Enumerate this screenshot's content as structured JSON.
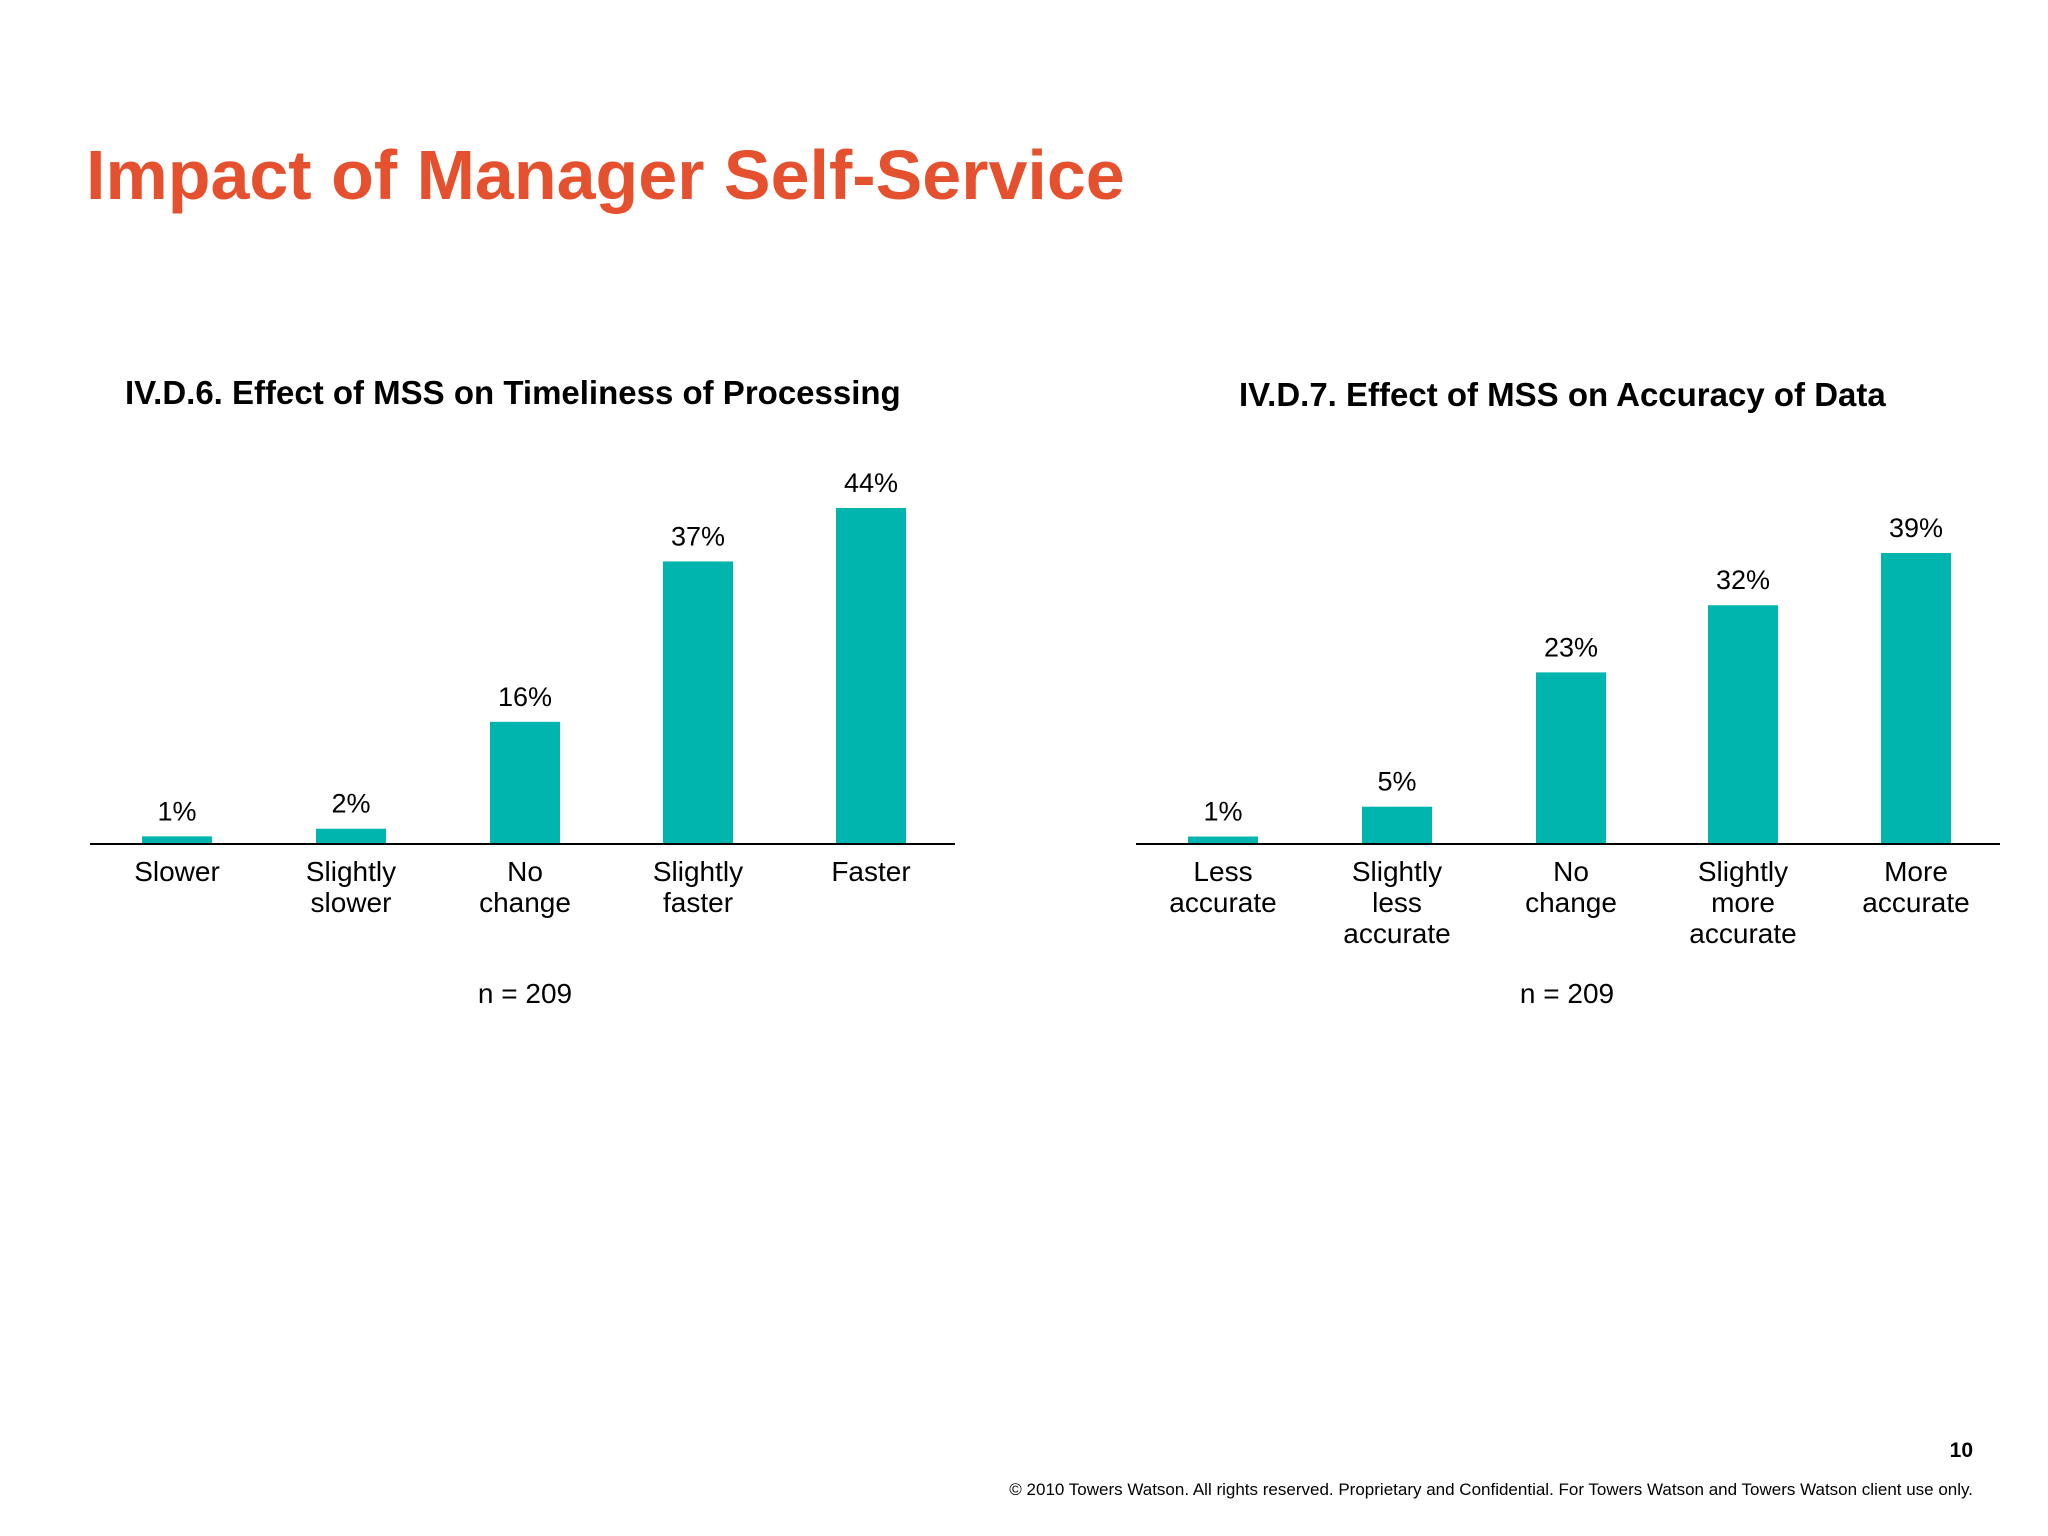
{
  "slide": {
    "title": "Impact of Manager Self-Service",
    "page_number": "10",
    "footer": "© 2010 Towers Watson. All rights reserved. Proprietary and Confidential. For Towers Watson and Towers Watson client use only."
  },
  "colors": {
    "title": "#E5502E",
    "bar": "#00B5AD",
    "axis": "#000000"
  },
  "chart_data": [
    {
      "type": "bar",
      "title": "IV.D.6. Effect of MSS on Timeliness of Processing",
      "categories": [
        [
          "Slower"
        ],
        [
          "Slightly",
          "slower"
        ],
        [
          "No",
          "change"
        ],
        [
          "Slightly",
          "faster"
        ],
        [
          "Faster"
        ]
      ],
      "values": [
        1,
        2,
        16,
        37,
        44
      ],
      "value_labels": [
        "1%",
        "2%",
        "16%",
        "37%",
        "44%"
      ],
      "unit": "%",
      "note": "n = 209",
      "xlabel": "",
      "ylabel": "",
      "ylim": [
        0,
        44
      ],
      "grid": false,
      "legend": "none"
    },
    {
      "type": "bar",
      "title": "IV.D.7. Effect of MSS on Accuracy of Data",
      "categories": [
        [
          "Less",
          "accurate"
        ],
        [
          "Slightly",
          "less",
          "accurate"
        ],
        [
          "No",
          "change"
        ],
        [
          "Slightly",
          "more",
          "accurate"
        ],
        [
          "More",
          "accurate"
        ]
      ],
      "values": [
        1,
        5,
        23,
        32,
        39
      ],
      "value_labels": [
        "1%",
        "5%",
        "23%",
        "32%",
        "39%"
      ],
      "unit": "%",
      "note": "n = 209",
      "xlabel": "",
      "ylabel": "",
      "ylim": [
        0,
        39
      ],
      "grid": false,
      "legend": "none"
    }
  ]
}
